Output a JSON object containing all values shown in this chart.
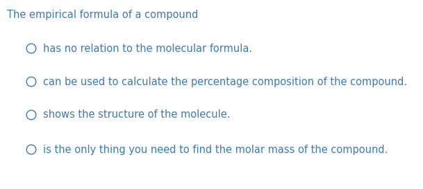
{
  "title": "The empirical formula of a compound",
  "title_color": "#3a7abf",
  "title_fontsize": 10.5,
  "title_fontweight": "normal",
  "options": [
    "has no relation to the molecular formula.",
    "can be used to calculate the percentage composition of the compound.",
    "shows the structure of the molecule.",
    "is the only thing you need to find the molar mass of the compound."
  ],
  "option_color": "#3a7abf",
  "option_fontsize": 10.5,
  "background_color": "#ffffff",
  "fig_width": 6.09,
  "fig_height": 2.73,
  "dpi": 100
}
